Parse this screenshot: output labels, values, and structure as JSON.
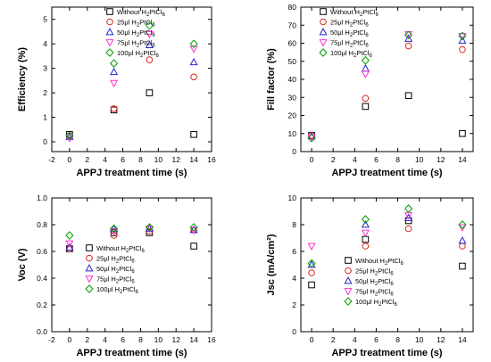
{
  "chart_data": [
    {
      "type": "scatter",
      "panel": "top-left",
      "xlabel": "APPJ treatment time (s)",
      "ylabel": "Efficiency (%)",
      "xlim": [
        -2,
        16
      ],
      "ylim": [
        -0.4,
        5.5
      ],
      "xticks": [
        -2,
        0,
        2,
        4,
        6,
        8,
        10,
        12,
        14,
        16
      ],
      "yticks": [
        0,
        1,
        2,
        3,
        4,
        5
      ],
      "legend_position": "top-right",
      "x": [
        0,
        5,
        9,
        14
      ],
      "series": [
        {
          "name": "Without H2PtCl6",
          "values": [
            0.3,
            1.3,
            2.0,
            0.3
          ]
        },
        {
          "name": "25μl H2PtCl6",
          "values": [
            0.25,
            1.35,
            3.35,
            2.65
          ]
        },
        {
          "name": "50μl H2PtCl6",
          "values": [
            0.2,
            2.85,
            3.95,
            3.25
          ]
        },
        {
          "name": "75μl H2PtCl6",
          "values": [
            0.15,
            2.4,
            4.4,
            3.8
          ]
        },
        {
          "name": "100μl H2PtCl6",
          "values": [
            0.25,
            3.2,
            4.75,
            4.0
          ]
        }
      ]
    },
    {
      "type": "scatter",
      "panel": "top-right",
      "xlabel": "APPJ treatment time (s)",
      "ylabel": "Fill factor (%)",
      "xlim": [
        -1,
        15
      ],
      "ylim": [
        0,
        80
      ],
      "xticks": [
        0,
        2,
        4,
        6,
        8,
        10,
        12,
        14
      ],
      "yticks": [
        0,
        10,
        20,
        30,
        40,
        50,
        60,
        70,
        80
      ],
      "legend_position": "top-left",
      "x": [
        0,
        5,
        9,
        14
      ],
      "series": [
        {
          "name": "Without H2PtCl6",
          "values": [
            9,
            25,
            31,
            10
          ]
        },
        {
          "name": "25μl H2PtCl6",
          "values": [
            9,
            29.5,
            58.5,
            56.5
          ]
        },
        {
          "name": "50μl H2PtCl6",
          "values": [
            8.5,
            46,
            62.5,
            61.5
          ]
        },
        {
          "name": "75μl H2PtCl6",
          "values": [
            8,
            43,
            65,
            64
          ]
        },
        {
          "name": "100μl H2PtCl6",
          "values": [
            7.5,
            50.5,
            64.5,
            64
          ]
        }
      ]
    },
    {
      "type": "scatter",
      "panel": "bottom-left",
      "xlabel": "APPJ treatment time (s)",
      "ylabel": "Voc (V)",
      "xlim": [
        -2,
        16
      ],
      "ylim": [
        0,
        1.0
      ],
      "xticks": [
        -2,
        0,
        2,
        4,
        6,
        8,
        10,
        12,
        14,
        16
      ],
      "yticks": [
        0.0,
        0.2,
        0.4,
        0.6,
        0.8,
        1.0
      ],
      "legend_position": "bottom-center",
      "x": [
        0,
        5,
        9,
        14
      ],
      "series": [
        {
          "name": "Without H2PtCl6",
          "values": [
            0.62,
            0.74,
            0.74,
            0.64
          ]
        },
        {
          "name": "25μl H2PtCl6",
          "values": [
            0.62,
            0.72,
            0.75,
            0.76
          ]
        },
        {
          "name": "50μl H2PtCl6",
          "values": [
            0.63,
            0.77,
            0.77,
            0.76
          ]
        },
        {
          "name": "75μl H2PtCl6",
          "values": [
            0.66,
            0.75,
            0.77,
            0.76
          ]
        },
        {
          "name": "100μl H2PtCl6",
          "values": [
            0.72,
            0.77,
            0.78,
            0.78
          ]
        }
      ]
    },
    {
      "type": "scatter",
      "panel": "bottom-right",
      "xlabel": "APPJ treatment time (s)",
      "ylabel": "Jsc (mA/cm²)",
      "xlim": [
        -1,
        15
      ],
      "ylim": [
        0,
        10
      ],
      "xticks": [
        0,
        2,
        4,
        6,
        8,
        10,
        12,
        14
      ],
      "yticks": [
        0,
        2,
        4,
        6,
        8,
        10
      ],
      "legend_position": "bottom-right",
      "x": [
        0,
        5,
        9,
        14
      ],
      "series": [
        {
          "name": "Without H2PtCl6",
          "values": [
            3.5,
            6.9,
            8.3,
            4.9
          ]
        },
        {
          "name": "25μl H2PtCl6",
          "values": [
            4.4,
            6.4,
            7.7,
            6.4
          ]
        },
        {
          "name": "50μl H2PtCl6",
          "values": [
            5.0,
            8.0,
            8.5,
            6.8
          ]
        },
        {
          "name": "75μl H2PtCl6",
          "values": [
            6.4,
            7.4,
            8.7,
            7.8
          ]
        },
        {
          "name": "100μl H2PtCl6",
          "values": [
            5.1,
            8.4,
            9.2,
            8.0
          ]
        }
      ]
    }
  ],
  "style": {
    "series_colors": [
      "#000000",
      "#d9261c",
      "#2626c8",
      "#ff33cc",
      "#00a000"
    ],
    "series_markers": [
      "square",
      "circle",
      "triangle-up",
      "triangle-down",
      "diamond"
    ]
  },
  "legend": {
    "labels": [
      "Without H2PtCl6",
      "25μl H2PtCl6",
      "50μl H2PtCl6",
      "75μl H2PtCl6",
      "100μl H2PtCl6"
    ]
  }
}
